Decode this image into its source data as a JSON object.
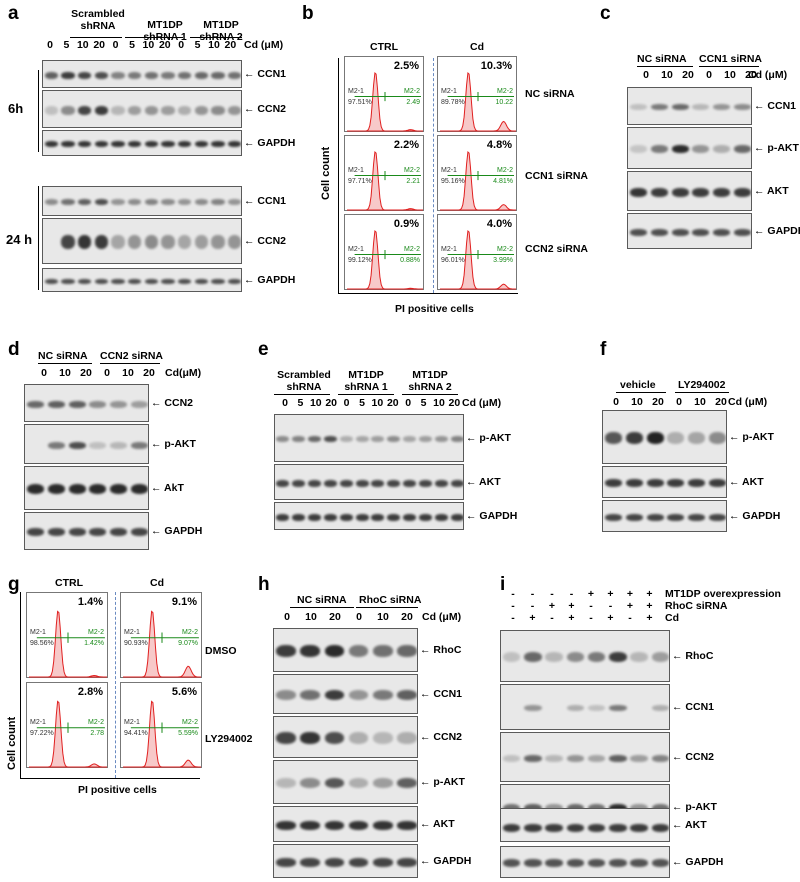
{
  "colors": {
    "band": "#1a1a1a",
    "blot_bg": "#e8e8e8",
    "histogram": "#e02020",
    "gate": "#1a8a1a"
  },
  "panel_a": {
    "label": "a",
    "groups": [
      "Scrambled shRNA",
      "MT1DP shRNA 1",
      "MT1DP shRNA 2"
    ],
    "doses": [
      "0",
      "5",
      "10",
      "20",
      "0",
      "5",
      "10",
      "20",
      "0",
      "5",
      "10",
      "20"
    ],
    "dose_unit": "Cd (μM)",
    "time_6h": "6h",
    "time_24h": "24 h",
    "bands_6h": [
      "CCN1",
      "CCN2",
      "GAPDH"
    ],
    "bands_24h": [
      "CCN1",
      "CCN2",
      "GAPDH"
    ]
  },
  "panel_b": {
    "label": "b",
    "cols": [
      "CTRL",
      "Cd"
    ],
    "rows": [
      "NC siRNA",
      "CCN1 siRNA",
      "CCN2 siRNA"
    ],
    "pcts": [
      "2.5%",
      "10.3%",
      "2.2%",
      "4.8%",
      "0.9%",
      "4.0%"
    ],
    "m1": [
      "M2-1",
      "M2-1",
      "M2-1",
      "M2-1",
      "M2-1",
      "M2-1"
    ],
    "m1v": [
      "97.51%",
      "89.78%",
      "97.71%",
      "95.16%",
      "99.12%",
      "96.01%"
    ],
    "m2": [
      "M2-2",
      "M2-2",
      "M2-2",
      "M2-2",
      "M2-2",
      "M2-2"
    ],
    "m2v": [
      "2.49",
      "10.22",
      "2.21",
      "4.81%",
      "0.88%",
      "3.99%"
    ],
    "ylabel": "Cell count",
    "xlabel": "PI positive cells"
  },
  "panel_c": {
    "label": "c",
    "groups": [
      "NC siRNA",
      "CCN1 siRNA"
    ],
    "doses": [
      "0",
      "10",
      "20",
      "0",
      "10",
      "20"
    ],
    "dose_unit": "Cd (μM)",
    "bands": [
      "CCN1",
      "p-AKT",
      "AKT",
      "GAPDH"
    ]
  },
  "panel_d": {
    "label": "d",
    "groups": [
      "NC siRNA",
      "CCN2 siRNA"
    ],
    "doses": [
      "0",
      "10",
      "20",
      "0",
      "10",
      "20"
    ],
    "dose_unit": "Cd(μM)",
    "bands": [
      "CCN2",
      "p-AKT",
      "AkT",
      "GAPDH"
    ]
  },
  "panel_e": {
    "label": "e",
    "groups": [
      "Scrambled shRNA",
      "MT1DP shRNA 1",
      "MT1DP shRNA 2"
    ],
    "doses": [
      "0",
      "5",
      "10",
      "20",
      "0",
      "5",
      "10",
      "20",
      "0",
      "5",
      "10",
      "20"
    ],
    "dose_unit": "Cd (μM)",
    "bands": [
      "p-AKT",
      "AKT",
      "GAPDH"
    ]
  },
  "panel_f": {
    "label": "f",
    "groups": [
      "vehicle",
      "LY294002"
    ],
    "doses": [
      "0",
      "10",
      "20",
      "0",
      "10",
      "20"
    ],
    "dose_unit": "Cd (μM)",
    "bands": [
      "p-AKT",
      "AKT",
      "GAPDH"
    ]
  },
  "panel_g": {
    "label": "g",
    "cols": [
      "CTRL",
      "Cd"
    ],
    "rows": [
      "DMSO",
      "LY294002"
    ],
    "pcts": [
      "1.4%",
      "9.1%",
      "2.8%",
      "5.6%"
    ],
    "m1": [
      "M2-1",
      "M2-1",
      "M2-1",
      "M2-1"
    ],
    "m1v": [
      "98.56%",
      "90.93%",
      "97.22%",
      "94.41%"
    ],
    "m2": [
      "M2-2",
      "M2-2",
      "M2-2",
      "M2-2"
    ],
    "m2v": [
      "1.42%",
      "9.07%",
      "2.78",
      "5.59%"
    ],
    "ylabel": "Cell count",
    "xlabel": "PI positive cells"
  },
  "panel_h": {
    "label": "h",
    "groups": [
      "NC siRNA",
      "RhoC siRNA"
    ],
    "doses": [
      "0",
      "10",
      "20",
      "0",
      "10",
      "20"
    ],
    "dose_unit": "Cd (μM)",
    "bands": [
      "RhoC",
      "CCN1",
      "CCN2",
      "p-AKT",
      "AKT",
      "GAPDH"
    ]
  },
  "panel_i": {
    "label": "i",
    "rows": [
      {
        "name": "MT1DP overexpression",
        "signs": [
          "-",
          "-",
          "-",
          "-",
          "+",
          "+",
          "+",
          "+"
        ]
      },
      {
        "name": "RhoC siRNA",
        "signs": [
          "-",
          "-",
          "+",
          "+",
          "-",
          "-",
          "+",
          "+"
        ]
      },
      {
        "name": "Cd",
        "signs": [
          "-",
          "+",
          "-",
          "+",
          "-",
          "+",
          "-",
          "+"
        ]
      }
    ],
    "bands": [
      "RhoC",
      "CCN1",
      "CCN2",
      "p-AKT",
      "AKT",
      "GAPDH"
    ]
  }
}
